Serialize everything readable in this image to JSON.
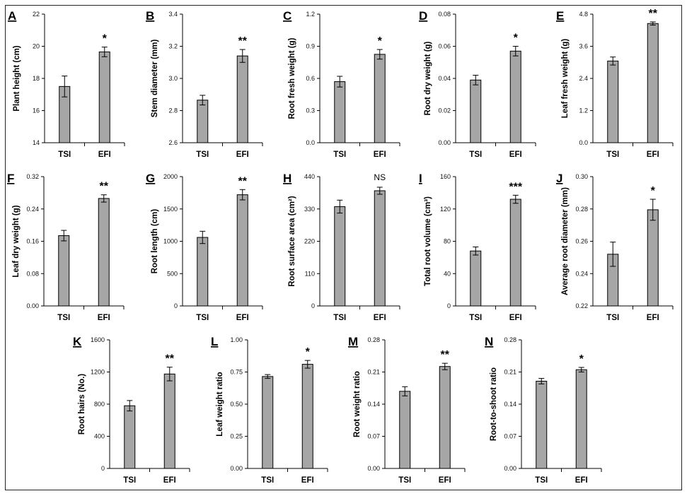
{
  "figure": {
    "colors": {
      "bar": "#a6a6a6",
      "outline": "#000000",
      "frame": "#222222"
    }
  },
  "chart_data": [
    {
      "id": "A",
      "type": "bar",
      "categories": [
        "TSI",
        "EFI"
      ],
      "values": [
        17.5,
        19.65
      ],
      "errors": [
        0.65,
        0.3
      ],
      "ylabel": "Plant height (cm)",
      "ylim": [
        14,
        22
      ],
      "yticks": [
        "14",
        "16",
        "18",
        "20",
        "22"
      ],
      "significance": "*"
    },
    {
      "id": "B",
      "type": "bar",
      "categories": [
        "TSI",
        "EFI"
      ],
      "values": [
        2.865,
        3.14
      ],
      "errors": [
        0.03,
        0.04
      ],
      "ylabel": "Stem diameter (mm)",
      "ylim": [
        2.6,
        3.4
      ],
      "yticks": [
        "2.6",
        "2.8",
        "3.0",
        "3.2",
        "3.4"
      ],
      "significance": "**"
    },
    {
      "id": "C",
      "type": "bar",
      "categories": [
        "TSI",
        "EFI"
      ],
      "values": [
        0.57,
        0.825
      ],
      "errors": [
        0.05,
        0.045
      ],
      "ylabel": "Root fresh weight (g)",
      "ylim": [
        0,
        1.2
      ],
      "yticks": [
        "0.0",
        "0.3",
        "0.6",
        "0.9",
        "1.2"
      ],
      "significance": "*"
    },
    {
      "id": "D",
      "type": "bar",
      "categories": [
        "TSI",
        "EFI"
      ],
      "values": [
        0.039,
        0.057
      ],
      "errors": [
        0.003,
        0.003
      ],
      "ylabel": "Root dry weight (g)",
      "ylim": [
        0,
        0.08
      ],
      "yticks": [
        "0.00",
        "0.02",
        "0.04",
        "0.06",
        "0.08"
      ],
      "significance": "*"
    },
    {
      "id": "E",
      "type": "bar",
      "categories": [
        "TSI",
        "EFI"
      ],
      "values": [
        3.05,
        4.45
      ],
      "errors": [
        0.15,
        0.06
      ],
      "ylabel": "Leaf fresh weight (g)",
      "ylim": [
        0,
        4.8
      ],
      "yticks": [
        "0.0",
        "1.2",
        "2.4",
        "3.6",
        "4.8"
      ],
      "significance": "**"
    },
    {
      "id": "F",
      "type": "bar",
      "categories": [
        "TSI",
        "EFI"
      ],
      "values": [
        0.174,
        0.266
      ],
      "errors": [
        0.013,
        0.009
      ],
      "ylabel": "Leaf dry weight (g)",
      "ylim": [
        0,
        0.32
      ],
      "yticks": [
        "0.00",
        "0.08",
        "0.16",
        "0.24",
        "0.32"
      ],
      "significance": "**"
    },
    {
      "id": "G",
      "type": "bar",
      "categories": [
        "TSI",
        "EFI"
      ],
      "values": [
        1060,
        1720
      ],
      "errors": [
        95,
        80
      ],
      "ylabel": "Root length (cm)",
      "ylim": [
        0,
        2000
      ],
      "yticks": [
        "0",
        "500",
        "1000",
        "1500",
        "2000"
      ],
      "significance": "**"
    },
    {
      "id": "H",
      "type": "bar",
      "categories": [
        "TSI",
        "EFI"
      ],
      "values": [
        338,
        392
      ],
      "errors": [
        22,
        12
      ],
      "ylabel": "Root surface area (cm²)",
      "ylim": [
        0,
        440
      ],
      "yticks": [
        "0",
        "110",
        "220",
        "330",
        "440"
      ],
      "significance": "NS"
    },
    {
      "id": "I",
      "type": "bar",
      "categories": [
        "TSI",
        "EFI"
      ],
      "values": [
        68,
        132
      ],
      "errors": [
        5,
        5
      ],
      "ylabel": "Total root volume (cm³)",
      "ylim": [
        0,
        160
      ],
      "yticks": [
        "0",
        "40",
        "80",
        "120",
        "160"
      ],
      "significance": "***"
    },
    {
      "id": "J",
      "type": "bar",
      "categories": [
        "TSI",
        "EFI"
      ],
      "values": [
        0.252,
        0.2795
      ],
      "errors": [
        0.0075,
        0.0065
      ],
      "ylabel": "Average root diameter (mm)",
      "ylim": [
        0.22,
        0.3
      ],
      "yticks": [
        "0.22",
        "0.24",
        "0.26",
        "0.28",
        "0.30"
      ],
      "significance": "*"
    },
    {
      "id": "K",
      "type": "bar",
      "categories": [
        "TSI",
        "EFI"
      ],
      "values": [
        780,
        1175
      ],
      "errors": [
        65,
        85
      ],
      "ylabel": "Root hairs (No.)",
      "ylim": [
        0,
        1600
      ],
      "yticks": [
        "0",
        "400",
        "800",
        "1200",
        "1600"
      ],
      "significance": "**"
    },
    {
      "id": "L",
      "type": "bar",
      "categories": [
        "TSI",
        "EFI"
      ],
      "values": [
        0.715,
        0.81
      ],
      "errors": [
        0.015,
        0.03
      ],
      "ylabel": "Leaf weight ratio",
      "ylim": [
        0,
        1
      ],
      "yticks": [
        "0.00",
        "0.25",
        "0.50",
        "0.75",
        "1.00"
      ],
      "significance": "*"
    },
    {
      "id": "M",
      "type": "bar",
      "categories": [
        "TSI",
        "EFI"
      ],
      "values": [
        0.168,
        0.222
      ],
      "errors": [
        0.01,
        0.007
      ],
      "ylabel": "Root weight ratio",
      "ylim": [
        0,
        0.28
      ],
      "yticks": [
        "0.00",
        "0.07",
        "0.14",
        "0.21",
        "0.28"
      ],
      "significance": "**"
    },
    {
      "id": "N",
      "type": "bar",
      "categories": [
        "TSI",
        "EFI"
      ],
      "values": [
        0.19,
        0.215
      ],
      "errors": [
        0.006,
        0.005
      ],
      "ylabel": "Root-to-shoot ratio",
      "ylim": [
        0,
        0.28
      ],
      "yticks": [
        "0.00",
        "0.07",
        "0.14",
        "0.21",
        "0.28"
      ],
      "significance": "*"
    }
  ]
}
